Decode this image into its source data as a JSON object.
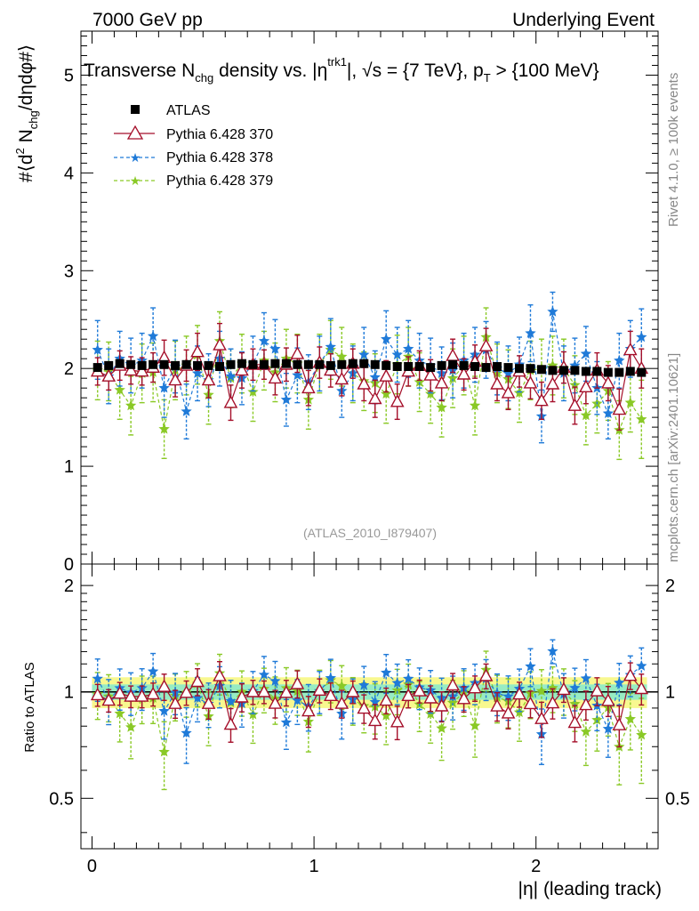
{
  "header": {
    "left_label": "7000 GeV pp",
    "right_label": "Underlying Event"
  },
  "side_labels": {
    "rivet": "Rivet 4.1.0, ≥ 100k events",
    "mcplots": "mcplots.cern.ch [arXiv:2401.10621]"
  },
  "chart_data": [
    {
      "type": "scatter",
      "panel": "main",
      "title_parts": {
        "t1": "Transverse N",
        "t1_sub": "chg",
        "t2": " density vs. |η",
        "t2_sup": "trk1",
        "t3": "|, √s = {7 TeV}, p",
        "t3_sub": "T",
        "t4": " > {100 MeV}"
      },
      "ylabel_parts": {
        "a": "#⟨d",
        "a_sup": "2",
        "b": " N",
        "b_sub": "chg",
        "c": "/dηdφ#⟩"
      },
      "watermark": "(ATLAS_2010_I879407)",
      "xlim": [
        -0.05,
        2.55
      ],
      "ylim": [
        0,
        5.45
      ],
      "yticks": [
        0,
        1,
        2,
        3,
        4,
        5
      ],
      "ytick_labels": [
        "0",
        "1",
        "2",
        "3",
        "4",
        "5"
      ],
      "legend": {
        "position": "top-left",
        "entries": [
          "ATLAS",
          "Pythia 6.428 370",
          "Pythia 6.428 378",
          "Pythia 6.428 379"
        ]
      },
      "x": [
        0.025,
        0.075,
        0.125,
        0.175,
        0.225,
        0.275,
        0.325,
        0.375,
        0.425,
        0.475,
        0.525,
        0.575,
        0.625,
        0.675,
        0.725,
        0.775,
        0.825,
        0.875,
        0.925,
        0.975,
        1.025,
        1.075,
        1.125,
        1.175,
        1.225,
        1.275,
        1.325,
        1.375,
        1.425,
        1.475,
        1.525,
        1.575,
        1.625,
        1.675,
        1.725,
        1.775,
        1.825,
        1.875,
        1.925,
        1.975,
        2.025,
        2.075,
        2.125,
        2.175,
        2.225,
        2.275,
        2.325,
        2.375,
        2.425,
        2.475
      ],
      "series": [
        {
          "name": "ATLAS",
          "color": "#000000",
          "values": [
            2.01,
            2.03,
            2.05,
            2.04,
            2.03,
            2.04,
            2.04,
            2.03,
            2.04,
            2.03,
            2.03,
            2.02,
            2.04,
            2.05,
            2.04,
            2.04,
            2.05,
            2.05,
            2.04,
            2.04,
            2.04,
            2.03,
            2.04,
            2.05,
            2.05,
            2.04,
            2.03,
            2.02,
            2.02,
            2.02,
            2.01,
            2.03,
            2.04,
            2.03,
            2.02,
            2.01,
            2.02,
            2.01,
            2.0,
            2.0,
            1.99,
            1.98,
            1.98,
            1.98,
            1.97,
            1.97,
            1.96,
            1.96,
            1.97,
            1.96
          ],
          "errors": [
            0.03,
            0.03,
            0.03,
            0.03,
            0.03,
            0.03,
            0.03,
            0.03,
            0.03,
            0.03,
            0.03,
            0.03,
            0.03,
            0.03,
            0.03,
            0.03,
            0.03,
            0.03,
            0.03,
            0.03,
            0.03,
            0.03,
            0.03,
            0.03,
            0.03,
            0.03,
            0.03,
            0.03,
            0.03,
            0.03,
            0.03,
            0.03,
            0.03,
            0.03,
            0.03,
            0.03,
            0.03,
            0.03,
            0.03,
            0.03,
            0.03,
            0.03,
            0.03,
            0.03,
            0.03,
            0.03,
            0.03,
            0.03,
            0.03,
            0.03
          ]
        },
        {
          "name": "Pythia 6.428 370",
          "color": "#a50f2a",
          "marker": "triangle-open",
          "values": [
            1.97,
            1.92,
            2.03,
            1.98,
            1.97,
            2.01,
            2.11,
            1.88,
            2.03,
            2.17,
            1.88,
            2.24,
            1.65,
            1.98,
            2.04,
            2.04,
            1.9,
            2.04,
            2.15,
            1.8,
            2.06,
            1.98,
            1.89,
            2.05,
            1.84,
            1.69,
            1.92,
            1.66,
            1.97,
            2.03,
            1.93,
            1.85,
            2.13,
            1.94,
            2.07,
            2.23,
            1.84,
            1.75,
            1.97,
            1.85,
            1.67,
            1.84,
            2.01,
            1.62,
            1.81,
            1.98,
            1.85,
            1.58,
            2.19,
            2.0
          ],
          "errors": [
            0.14,
            0.14,
            0.15,
            0.14,
            0.14,
            0.15,
            0.18,
            0.17,
            0.16,
            0.19,
            0.18,
            0.22,
            0.18,
            0.18,
            0.16,
            0.15,
            0.17,
            0.17,
            0.19,
            0.18,
            0.16,
            0.17,
            0.17,
            0.15,
            0.17,
            0.19,
            0.16,
            0.18,
            0.15,
            0.15,
            0.16,
            0.18,
            0.17,
            0.16,
            0.17,
            0.18,
            0.17,
            0.17,
            0.16,
            0.16,
            0.19,
            0.18,
            0.16,
            0.19,
            0.17,
            0.18,
            0.18,
            0.21,
            0.19,
            0.2
          ]
        },
        {
          "name": "Pythia 6.428 378",
          "color": "#1f7ad8",
          "marker": "star",
          "line": "dashed",
          "values": [
            2.19,
            1.92,
            2.1,
            2.03,
            2.08,
            2.33,
            1.8,
            2.02,
            1.56,
            1.95,
            1.88,
            2.1,
            1.92,
            1.9,
            2.05,
            2.28,
            2.2,
            1.68,
            1.93,
            1.86,
            2.05,
            2.22,
            1.77,
            1.95,
            2.14,
            1.91,
            2.3,
            2.14,
            2.2,
            2.08,
            2.03,
            1.95,
            1.98,
            2.08,
            2.14,
            2.19,
            2.0,
            1.95,
            2.04,
            2.36,
            1.51,
            2.58,
            1.95,
            2.03,
            2.15,
            1.8,
            1.54,
            2.08,
            2.2,
            2.32
          ],
          "errors": [
            0.3,
            0.28,
            0.28,
            0.28,
            0.28,
            0.29,
            0.3,
            0.27,
            0.28,
            0.28,
            0.27,
            0.28,
            0.28,
            0.27,
            0.28,
            0.29,
            0.3,
            0.27,
            0.28,
            0.28,
            0.28,
            0.29,
            0.27,
            0.28,
            0.28,
            0.27,
            0.29,
            0.28,
            0.29,
            0.28,
            0.28,
            0.27,
            0.28,
            0.28,
            0.28,
            0.29,
            0.27,
            0.28,
            0.28,
            0.29,
            0.27,
            0.2,
            0.28,
            0.28,
            0.28,
            0.27,
            0.26,
            0.28,
            0.29,
            0.29
          ]
        },
        {
          "name": "Pythia 6.428 379",
          "color": "#8ac926",
          "marker": "star",
          "line": "dashed",
          "values": [
            1.98,
            1.97,
            1.78,
            1.62,
            1.95,
            1.96,
            1.38,
            1.98,
            2.03,
            2.14,
            1.73,
            2.28,
            1.9,
            2.05,
            1.76,
            2.08,
            1.96,
            2.1,
            2.05,
            1.68,
            2.05,
            2.19,
            2.12,
            1.95,
            1.87,
            1.85,
            1.74,
            2.04,
            2.12,
            1.86,
            1.74,
            1.6,
            1.9,
            2.03,
            1.62,
            2.32,
            1.95,
            1.89,
            1.75,
            1.98,
            2.0,
            2.03,
            2.0,
            1.83,
            1.52,
            1.64,
            1.77,
            1.37,
            1.65,
            1.48
          ],
          "errors": [
            0.3,
            0.3,
            0.3,
            0.3,
            0.3,
            0.3,
            0.3,
            0.3,
            0.3,
            0.3,
            0.3,
            0.3,
            0.3,
            0.3,
            0.3,
            0.3,
            0.3,
            0.3,
            0.3,
            0.3,
            0.3,
            0.3,
            0.3,
            0.3,
            0.3,
            0.3,
            0.3,
            0.3,
            0.3,
            0.3,
            0.3,
            0.3,
            0.3,
            0.3,
            0.3,
            0.3,
            0.3,
            0.3,
            0.3,
            0.3,
            0.3,
            0.3,
            0.3,
            0.3,
            0.3,
            0.3,
            0.3,
            0.3,
            0.3,
            0.4
          ]
        }
      ]
    },
    {
      "type": "scatter",
      "panel": "ratio",
      "ylabel": "Ratio to ATLAS",
      "xlabel": "|η| (leading track)",
      "xlim": [
        -0.05,
        2.55
      ],
      "ylim": [
        0.36,
        2.3
      ],
      "yscale": "log",
      "xticks": [
        0,
        1,
        2
      ],
      "xtick_labels": [
        "0",
        "1",
        "2"
      ],
      "yticks": [
        0.5,
        1,
        2
      ],
      "ytick_labels": [
        "0.5",
        "1",
        "2"
      ],
      "band_inner": 0.05,
      "band_outer": 0.1
    }
  ]
}
